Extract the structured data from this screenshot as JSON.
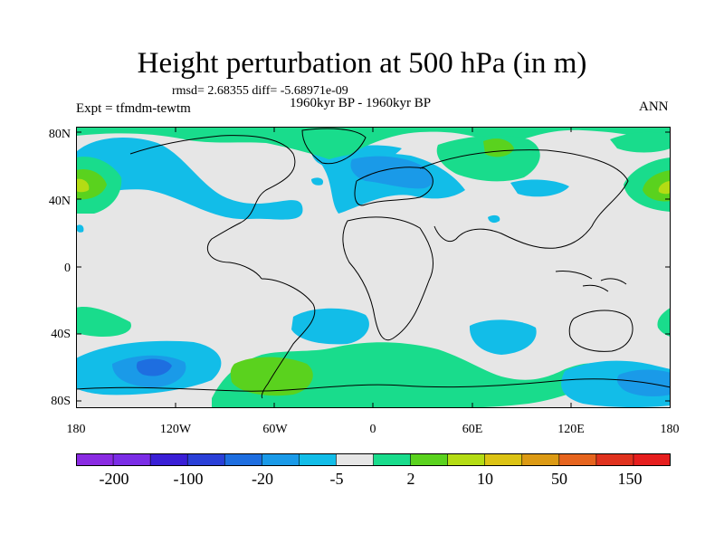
{
  "title": "Height perturbation at 500 hPa (in m)",
  "stats": "rmsd= 2.68355 diff= -5.68971e-09",
  "period": "1960kyr BP - 1960kyr BP",
  "experiment": "Expt = tfmdm-tewtm",
  "season": "ANN",
  "y_ticks": [
    "80N",
    "40N",
    "0",
    "40S",
    "80S"
  ],
  "x_ticks": [
    "180",
    "120W",
    "60W",
    "0",
    "60E",
    "120E",
    "180"
  ],
  "colorbar": {
    "colors": [
      "#8a2be2",
      "#7b2de6",
      "#3a1fd6",
      "#2a40d8",
      "#1e6ee0",
      "#1a9ae8",
      "#12bde8",
      "#e6e6e6",
      "#19dc8c",
      "#5ad21e",
      "#b4dc14",
      "#dcc314",
      "#dc9a14",
      "#e6641e",
      "#e0321e",
      "#e61e1e"
    ],
    "labels": [
      "-200",
      "-100",
      "-20",
      "-5",
      "2",
      "10",
      "50",
      "150"
    ]
  },
  "field_colors": {
    "background": "#e6e6e6",
    "light_green": "#19dc8c",
    "green": "#5ad21e",
    "yellow_green": "#b4dc14",
    "cyan": "#12bde8",
    "blue": "#1a9ae8",
    "mid_blue": "#1e6ee0"
  }
}
